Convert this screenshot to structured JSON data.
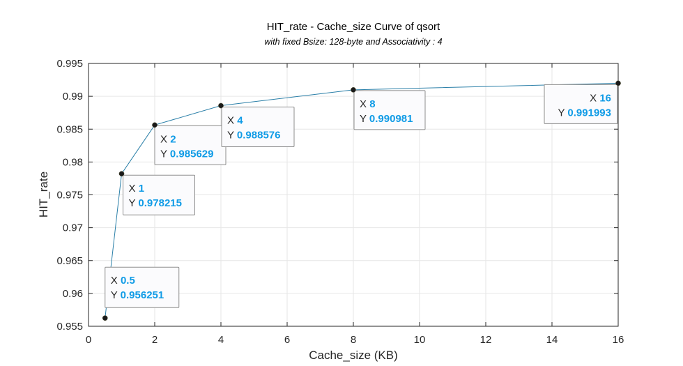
{
  "chart_data": {
    "type": "line",
    "title": "HIT_rate - Cache_size Curve of qsort",
    "subtitle": "with fixed Bsize: 128-byte and Associativity : 4",
    "xlabel": "Cache_size (KB)",
    "ylabel": "HIT_rate",
    "xlim": [
      0,
      16
    ],
    "ylim": [
      0.955,
      0.995
    ],
    "xticks": [
      "0",
      "2",
      "4",
      "6",
      "8",
      "10",
      "12",
      "14",
      "16"
    ],
    "xtick_values": [
      0,
      2,
      4,
      6,
      8,
      10,
      12,
      14,
      16
    ],
    "yticks": [
      "0.955",
      "0.96",
      "0.965",
      "0.97",
      "0.975",
      "0.98",
      "0.985",
      "0.99",
      "0.995"
    ],
    "ytick_values": [
      0.955,
      0.96,
      0.965,
      0.97,
      0.975,
      0.98,
      0.985,
      0.99,
      0.995
    ],
    "grid": true,
    "line_color": "#2a7fa8",
    "marker_color": "#1a1a1a",
    "datatip_value_color": "#0f9be6",
    "series": [
      {
        "x": [
          0.5,
          1,
          2,
          4,
          8,
          16
        ],
        "values": [
          0.956251,
          0.978215,
          0.985629,
          0.988576,
          0.990981,
          0.991993
        ]
      }
    ],
    "datatips": [
      {
        "x_label": "X",
        "x_text": "0.5",
        "y_label": "Y",
        "y_text": "0.956251"
      },
      {
        "x_label": "X",
        "x_text": "1",
        "y_label": "Y",
        "y_text": "0.978215"
      },
      {
        "x_label": "X",
        "x_text": "2",
        "y_label": "Y",
        "y_text": "0.985629"
      },
      {
        "x_label": "X",
        "x_text": "4",
        "y_label": "Y",
        "y_text": "0.988576"
      },
      {
        "x_label": "X",
        "x_text": "8",
        "y_label": "Y",
        "y_text": "0.990981"
      },
      {
        "x_label": "X",
        "x_text": "16",
        "y_label": "Y",
        "y_text": "0.991993"
      }
    ]
  }
}
